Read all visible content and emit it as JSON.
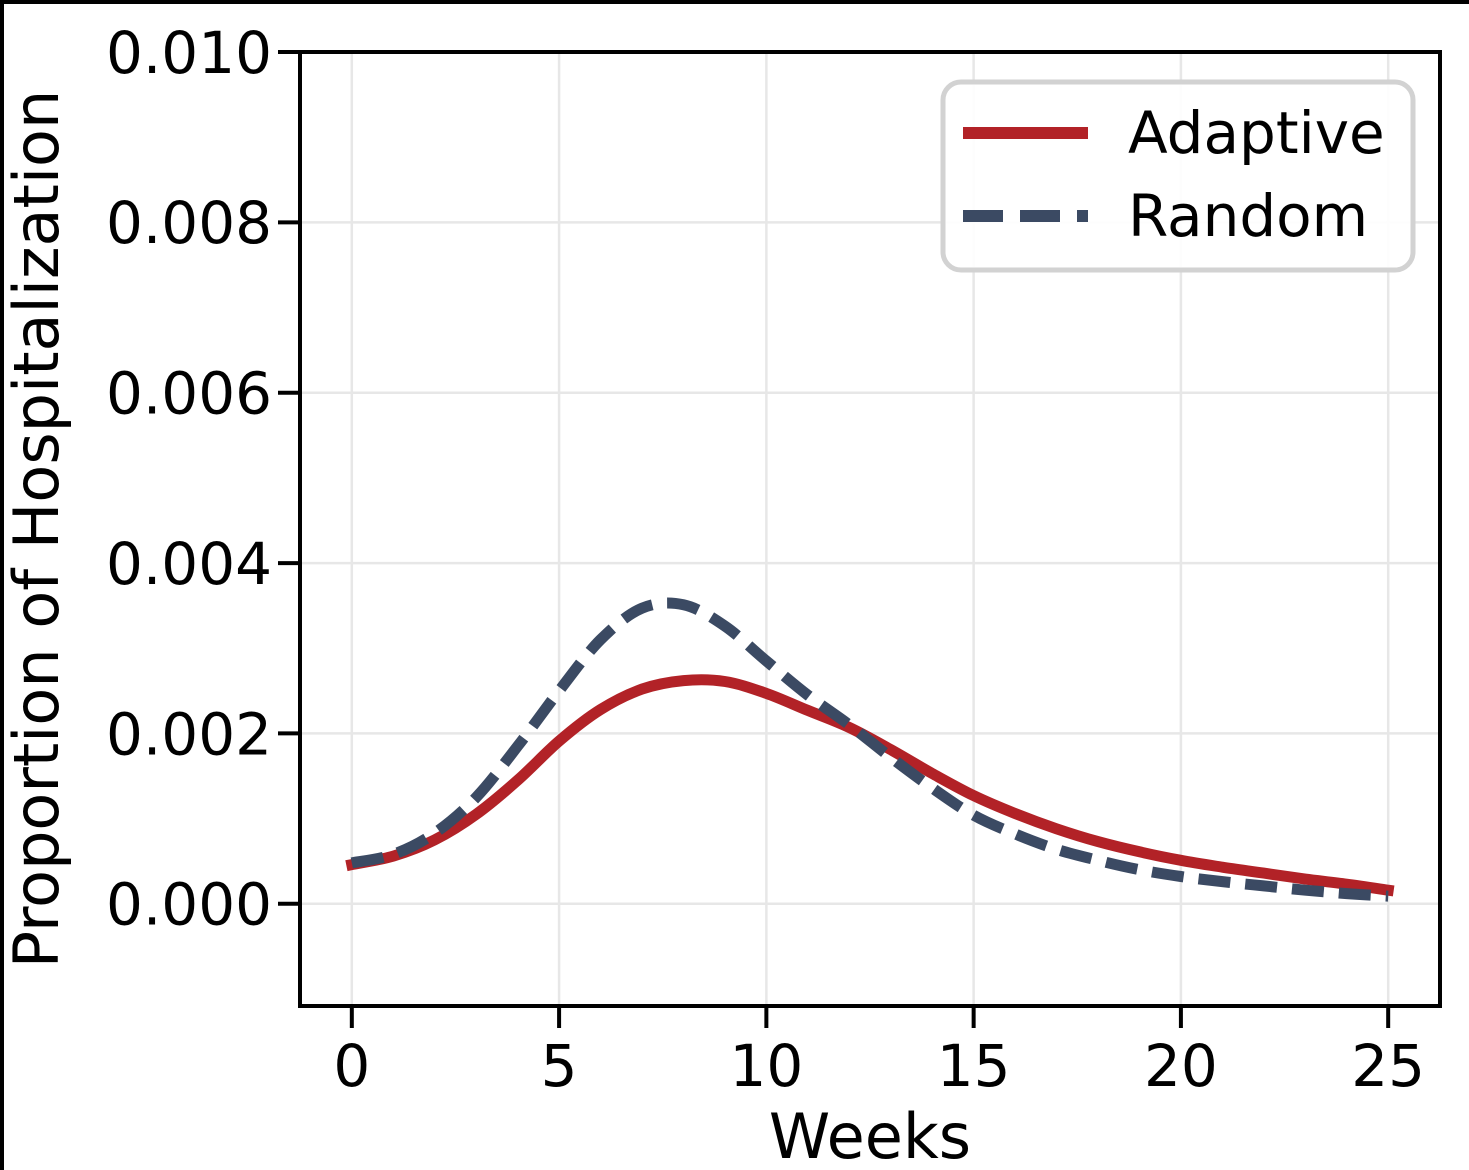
{
  "chart_data": {
    "type": "line",
    "title": "",
    "xlabel": "Weeks",
    "ylabel": "Proportion of Hospitalization",
    "x": [
      0,
      1,
      2,
      3,
      4,
      5,
      6,
      7,
      8,
      9,
      10,
      11,
      12,
      13,
      14,
      15,
      16,
      17,
      18,
      19,
      20,
      21,
      22,
      23,
      24,
      25
    ],
    "series": [
      {
        "name": "Adaptive",
        "color": "#b22227",
        "line_style": "solid",
        "values": [
          0.00046,
          0.00056,
          0.00075,
          0.00105,
          0.00145,
          0.00191,
          0.00228,
          0.00252,
          0.00262,
          0.00261,
          0.00247,
          0.00227,
          0.00207,
          0.00181,
          0.00153,
          0.00127,
          0.00106,
          0.00088,
          0.00073,
          0.00061,
          0.00051,
          0.00043,
          0.00036,
          0.00029,
          0.00023,
          0.00016
        ]
      },
      {
        "name": "Random",
        "color": "#3b4a63",
        "line_style": "dashed",
        "values": [
          0.00048,
          0.00058,
          0.00083,
          0.00125,
          0.00185,
          0.0025,
          0.0031,
          0.00347,
          0.00351,
          0.00326,
          0.00285,
          0.00245,
          0.0021,
          0.00172,
          0.00136,
          0.00104,
          0.00082,
          0.00064,
          0.00051,
          0.0004,
          0.00032,
          0.00026,
          0.00021,
          0.00016,
          0.00012,
          9e-05
        ]
      }
    ],
    "xlim": [
      -1.25,
      26.25
    ],
    "ylim": [
      -0.0012,
      0.01
    ],
    "x_ticks": {
      "values": [
        0,
        5,
        10,
        15,
        20,
        25
      ],
      "labels": [
        "0",
        "5",
        "10",
        "15",
        "20",
        "25"
      ]
    },
    "y_ticks": {
      "values": [
        0,
        0.002,
        0.004,
        0.006,
        0.008,
        0.01
      ],
      "labels": [
        "0.000",
        "0.002",
        "0.004",
        "0.006",
        "0.008",
        "0.010"
      ]
    },
    "grid": true,
    "legend": {
      "position": "upper right",
      "entries": [
        "Adaptive",
        "Random"
      ]
    }
  },
  "colors": {
    "adaptive": "#b22227",
    "random": "#3b4a63",
    "grid": "#e7e7e7",
    "spine": "#000000",
    "legend_border": "#d2d2d2",
    "legend_fill": "rgba(255,255,255,0.9)"
  }
}
